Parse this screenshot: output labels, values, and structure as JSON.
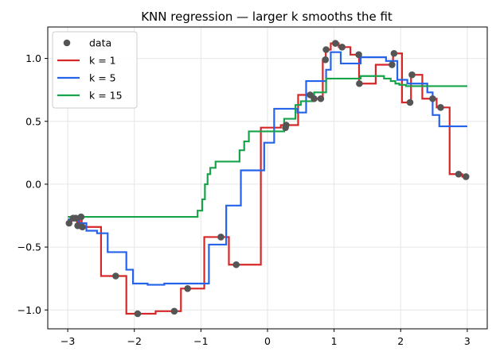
{
  "chart_data": {
    "type": "line",
    "title": "KNN regression — larger k smooths the fit",
    "xlabel": "",
    "ylabel": "",
    "xlim": [
      -3.3,
      3.3
    ],
    "ylim": [
      -1.15,
      1.25
    ],
    "xticks": [
      -3,
      -2,
      -1,
      0,
      1,
      2,
      3
    ],
    "xtick_labels": [
      "−3",
      "−2",
      "−1",
      "0",
      "1",
      "2",
      "3"
    ],
    "yticks": [
      -1.0,
      -0.5,
      0.0,
      0.5,
      1.0
    ],
    "ytick_labels": [
      "−1.0",
      "−0.5",
      "0.0",
      "0.5",
      "1.0"
    ],
    "grid": true,
    "legend_position": "top-left",
    "scatter": {
      "name": "data",
      "color": "#555555",
      "points": [
        [
          -2.98,
          -0.31
        ],
        [
          -2.92,
          -0.27
        ],
        [
          -2.88,
          -0.27
        ],
        [
          -2.85,
          -0.33
        ],
        [
          -2.8,
          -0.26
        ],
        [
          -2.78,
          -0.34
        ],
        [
          -2.28,
          -0.73
        ],
        [
          -1.95,
          -1.03
        ],
        [
          -1.4,
          -1.01
        ],
        [
          -1.2,
          -0.83
        ],
        [
          -0.7,
          -0.42
        ],
        [
          -0.47,
          -0.64
        ],
        [
          0.27,
          0.45
        ],
        [
          0.28,
          0.47
        ],
        [
          0.64,
          0.71
        ],
        [
          0.7,
          0.68
        ],
        [
          0.8,
          0.68
        ],
        [
          0.87,
          0.99
        ],
        [
          0.88,
          1.07
        ],
        [
          1.02,
          1.12
        ],
        [
          1.12,
          1.09
        ],
        [
          1.37,
          1.03
        ],
        [
          1.38,
          0.8
        ],
        [
          1.87,
          0.95
        ],
        [
          1.9,
          1.04
        ],
        [
          2.14,
          0.65
        ],
        [
          2.17,
          0.87
        ],
        [
          2.48,
          0.68
        ],
        [
          2.6,
          0.61
        ],
        [
          2.87,
          0.08
        ],
        [
          2.98,
          0.06
        ]
      ]
    },
    "series": [
      {
        "name": "k = 1",
        "color": "#d62728",
        "steps": [
          [
            -3.0,
            -0.31
          ],
          [
            -2.95,
            -0.27
          ],
          [
            -2.9,
            -0.27
          ],
          [
            -2.86,
            -0.33
          ],
          [
            -2.82,
            -0.26
          ],
          [
            -2.79,
            -0.34
          ],
          [
            -2.5,
            -0.73
          ],
          [
            -2.12,
            -1.03
          ],
          [
            -1.68,
            -1.01
          ],
          [
            -1.3,
            -0.83
          ],
          [
            -0.95,
            -0.42
          ],
          [
            -0.58,
            -0.64
          ],
          [
            -0.1,
            0.45
          ],
          [
            0.2,
            0.47
          ],
          [
            0.46,
            0.71
          ],
          [
            0.67,
            0.68
          ],
          [
            0.75,
            0.68
          ],
          [
            0.83,
            0.99
          ],
          [
            0.875,
            1.07
          ],
          [
            0.95,
            1.12
          ],
          [
            1.07,
            1.09
          ],
          [
            1.245,
            1.03
          ],
          [
            1.375,
            0.8
          ],
          [
            1.625,
            0.95
          ],
          [
            1.885,
            1.04
          ],
          [
            2.02,
            0.65
          ],
          [
            2.155,
            0.87
          ],
          [
            2.325,
            0.68
          ],
          [
            2.54,
            0.61
          ],
          [
            2.735,
            0.08
          ],
          [
            2.925,
            0.06
          ],
          [
            3.0,
            0.06
          ]
        ]
      },
      {
        "name": "k = 5",
        "color": "#2563eb",
        "steps": [
          [
            -3.0,
            -0.28
          ],
          [
            -2.84,
            -0.31
          ],
          [
            -2.72,
            -0.37
          ],
          [
            -2.56,
            -0.39
          ],
          [
            -2.4,
            -0.54
          ],
          [
            -2.12,
            -0.68
          ],
          [
            -2.02,
            -0.79
          ],
          [
            -1.8,
            -0.8
          ],
          [
            -1.55,
            -0.79
          ],
          [
            -1.05,
            -0.79
          ],
          [
            -0.88,
            -0.48
          ],
          [
            -0.62,
            -0.17
          ],
          [
            -0.4,
            0.11
          ],
          [
            -0.05,
            0.33
          ],
          [
            0.1,
            0.6
          ],
          [
            0.45,
            0.57
          ],
          [
            0.58,
            0.82
          ],
          [
            0.88,
            0.91
          ],
          [
            0.95,
            1.05
          ],
          [
            1.1,
            0.96
          ],
          [
            1.4,
            1.01
          ],
          [
            1.78,
            0.98
          ],
          [
            1.95,
            0.83
          ],
          [
            2.1,
            0.8
          ],
          [
            2.4,
            0.73
          ],
          [
            2.48,
            0.55
          ],
          [
            2.58,
            0.46
          ],
          [
            3.0,
            0.46
          ]
        ]
      },
      {
        "name": "k = 15",
        "color": "#16a34a",
        "steps": [
          [
            -3.0,
            -0.26
          ],
          [
            -1.05,
            -0.21
          ],
          [
            -0.98,
            -0.12
          ],
          [
            -0.94,
            0.0
          ],
          [
            -0.9,
            0.08
          ],
          [
            -0.86,
            0.13
          ],
          [
            -0.78,
            0.18
          ],
          [
            -0.42,
            0.27
          ],
          [
            -0.35,
            0.34
          ],
          [
            -0.28,
            0.42
          ],
          [
            0.25,
            0.52
          ],
          [
            0.42,
            0.63
          ],
          [
            0.5,
            0.66
          ],
          [
            0.7,
            0.73
          ],
          [
            0.88,
            0.84
          ],
          [
            1.4,
            0.86
          ],
          [
            1.75,
            0.84
          ],
          [
            1.85,
            0.82
          ],
          [
            1.92,
            0.8
          ],
          [
            1.98,
            0.79
          ],
          [
            2.08,
            0.78
          ],
          [
            3.0,
            0.78
          ]
        ]
      }
    ]
  }
}
